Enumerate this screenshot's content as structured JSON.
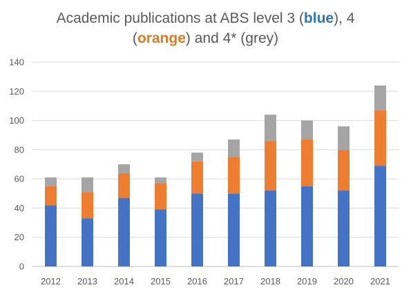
{
  "chart_data": {
    "type": "bar",
    "stacked": true,
    "title": {
      "part1": "Academic publications at ABS level 3 (",
      "blue_word": "blue",
      "part2": "), 4",
      "part3": "(",
      "orange_word": "orange",
      "part4": ") and 4* (grey)"
    },
    "categories": [
      "2012",
      "2013",
      "2014",
      "2015",
      "2016",
      "2017",
      "2018",
      "2019",
      "2020",
      "2021"
    ],
    "series": [
      {
        "key": "level3",
        "color": "#4472c4",
        "values": [
          42,
          33,
          47,
          39,
          50,
          50,
          52,
          55,
          52,
          69
        ]
      },
      {
        "key": "level4",
        "color": "#ed7d31",
        "values": [
          13,
          18,
          17,
          18,
          22,
          25,
          34,
          32,
          28,
          38
        ]
      },
      {
        "key": "level4star",
        "color": "#a5a5a5",
        "values": [
          6,
          10,
          6,
          4,
          6,
          12,
          18,
          13,
          16,
          17
        ]
      }
    ],
    "ylim": [
      0,
      140
    ],
    "yticks": [
      0,
      20,
      40,
      60,
      80,
      100,
      120,
      140
    ],
    "xlabel": "",
    "ylabel": "",
    "grid": true,
    "legend": "none"
  }
}
